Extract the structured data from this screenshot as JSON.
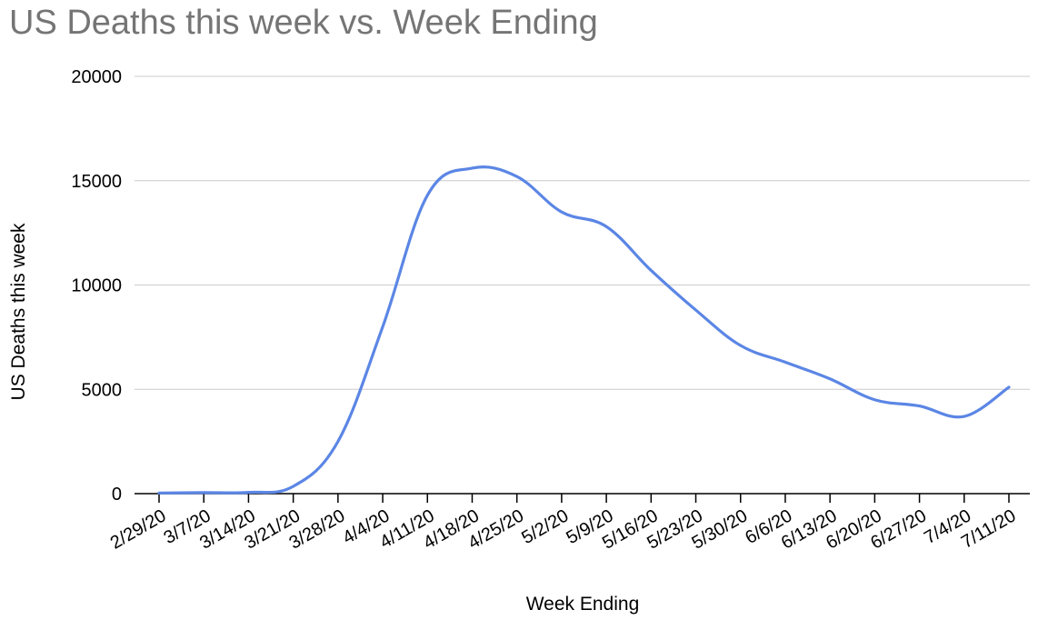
{
  "chart_data": {
    "type": "line",
    "title": "US Deaths this week vs. Week Ending",
    "xlabel": "Week Ending",
    "ylabel": "US Deaths this week",
    "ylim": [
      0,
      20000
    ],
    "yticks": [
      0,
      5000,
      10000,
      15000,
      20000
    ],
    "grid": true,
    "legend": "none",
    "line_color": "#5b86e5",
    "categories": [
      "2/29/20",
      "3/7/20",
      "3/14/20",
      "3/21/20",
      "3/28/20",
      "4/4/20",
      "4/11/20",
      "4/18/20",
      "4/25/20",
      "5/2/20",
      "5/9/20",
      "5/16/20",
      "5/23/20",
      "5/30/20",
      "6/6/20",
      "6/13/20",
      "6/20/20",
      "6/27/20",
      "7/4/20",
      "7/11/20"
    ],
    "series": [
      {
        "values": [
          30,
          50,
          60,
          350,
          2500,
          8000,
          14300,
          15600,
          15200,
          13500,
          12800,
          10700,
          8800,
          7100,
          6300,
          5500,
          4500,
          4200,
          3700,
          5100
        ]
      }
    ]
  }
}
